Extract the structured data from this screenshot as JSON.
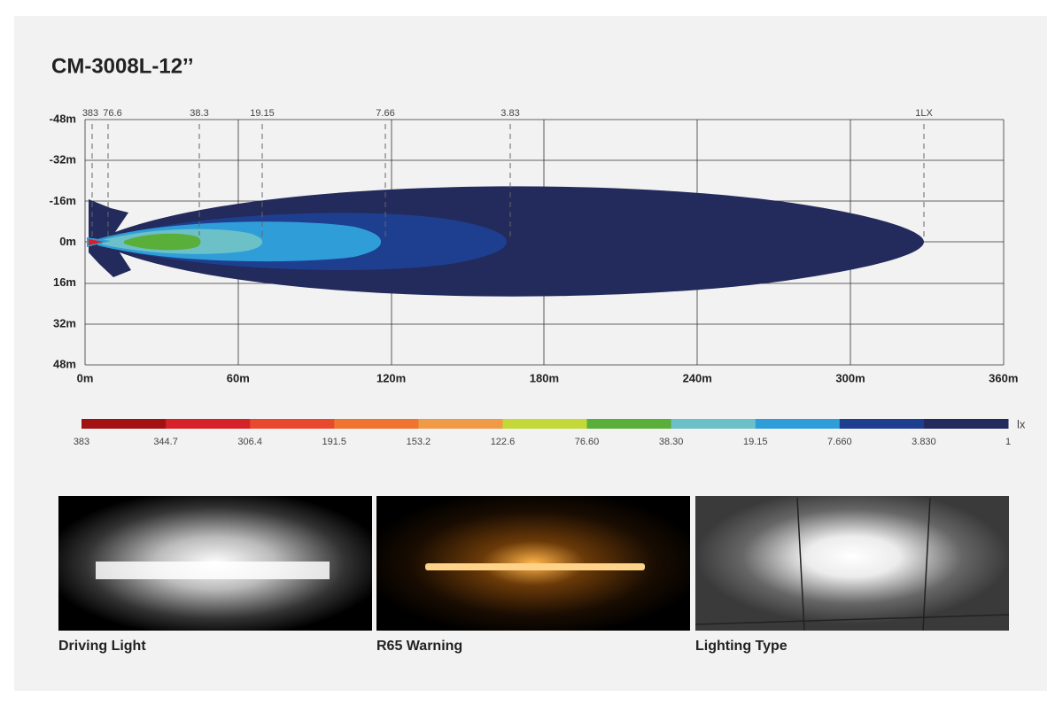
{
  "header": {
    "title": "CM-3008L-12’’"
  },
  "beam_chart": {
    "y_axis": [
      "-48m",
      "-32m",
      "-16m",
      "0m",
      "16m",
      "32m",
      "48m"
    ],
    "x_axis": [
      "0m",
      "60m",
      "120m",
      "180m",
      "240m",
      "300m",
      "360m"
    ],
    "isolux_labels": [
      "383",
      "76.6",
      "38.3",
      "19.15",
      "7.66",
      "3.83",
      "1LX"
    ]
  },
  "legend": {
    "unit": "lx",
    "labels": [
      "383",
      "344.7",
      "306.4",
      "191.5",
      "153.2",
      "122.6",
      "76.60",
      "38.30",
      "19.15",
      "7.660",
      "3.830",
      "1"
    ]
  },
  "photos": [
    {
      "caption": "Driving Light"
    },
    {
      "caption": "R65 Warning"
    },
    {
      "caption": "Lighting Type"
    }
  ]
}
